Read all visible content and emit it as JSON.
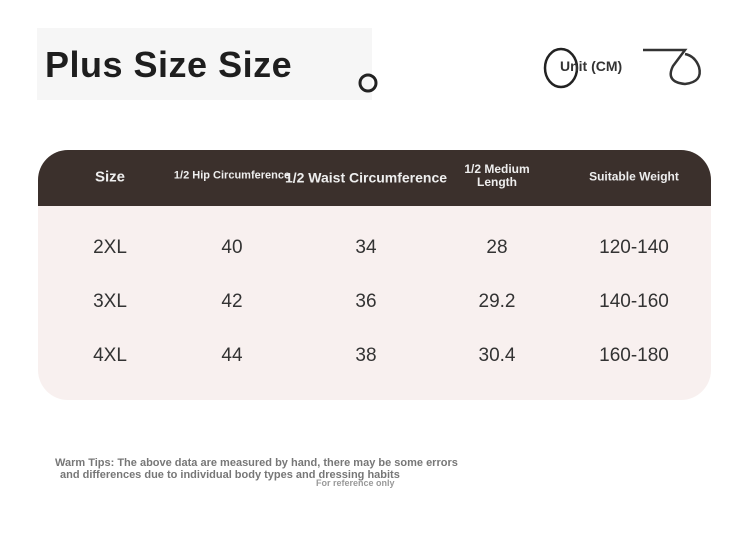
{
  "header": {
    "title": "Plus Size Size",
    "unit": "Unit (CM)"
  },
  "table": {
    "columns": [
      "Size",
      "1/2 Hip Circumference",
      "1/2 Waist Circumference",
      "1/2 Medium Length",
      "Suitable Weight"
    ],
    "rows": [
      [
        "2XL",
        "40",
        "34",
        "28",
        "120-140"
      ],
      [
        "3XL",
        "42",
        "36",
        "29.2",
        "140-160"
      ],
      [
        "4XL",
        "44",
        "38",
        "30.4",
        "160-180"
      ]
    ]
  },
  "footer": {
    "tips": [
      "Warm Tips: The above data are measured by hand, there may be some errors",
      "and differences due to individual body types and dressing habits"
    ],
    "note": "For reference only"
  }
}
